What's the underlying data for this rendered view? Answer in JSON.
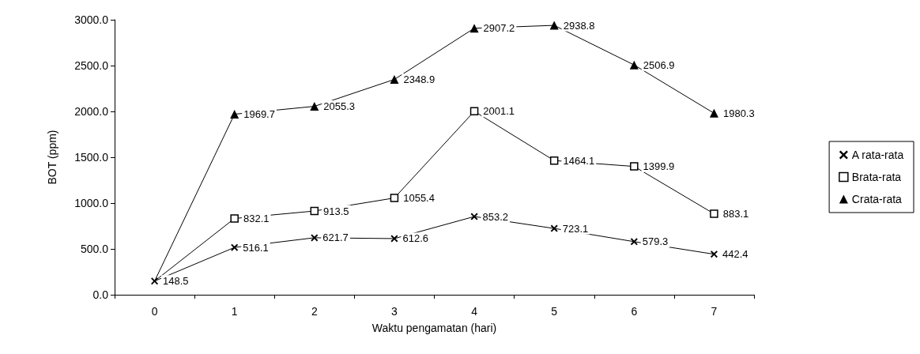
{
  "chart_data": {
    "type": "line",
    "xlabel": "Waktu pengamatan (hari)",
    "ylabel": "BOT (ppm)",
    "categories": [
      "0",
      "1",
      "2",
      "3",
      "4",
      "5",
      "6",
      "7"
    ],
    "ylim": [
      0,
      3000
    ],
    "yticks": [
      {
        "value": 0,
        "label": "0.0"
      },
      {
        "value": 500,
        "label": "500.0"
      },
      {
        "value": 1000,
        "label": "1000.0"
      },
      {
        "value": 1500,
        "label": "1500.0"
      },
      {
        "value": 2000,
        "label": "2000.0"
      },
      {
        "value": 2500,
        "label": "2500.0"
      },
      {
        "value": 3000,
        "label": "3000.0"
      }
    ],
    "grid": false,
    "legend": "right",
    "line_style": "solid",
    "series": [
      {
        "name": "A rata-rata",
        "color": "#000000",
        "marker": "cross",
        "values": [
          148.5,
          516.1,
          621.7,
          612.6,
          853.2,
          723.1,
          579.3,
          442.4
        ],
        "value_labels": [
          "148.5",
          "516.1",
          "621.7",
          "612.6",
          "853.2",
          "723.1",
          "579.3",
          "442.4"
        ]
      },
      {
        "name": "Brata-rata",
        "color": "#000000",
        "marker": "square",
        "values": [
          148.5,
          832.1,
          913.5,
          1055.4,
          2001.1,
          1464.1,
          1399.9,
          883.1
        ],
        "value_labels": [
          null,
          "832.1",
          "913.5",
          "1055.4",
          "2001.1",
          "1464.1",
          "1399.9",
          "883.1"
        ]
      },
      {
        "name": "Crata-rata",
        "color": "#000000",
        "marker": "triangle",
        "values": [
          148.5,
          1969.7,
          2055.3,
          2348.9,
          2907.2,
          2938.8,
          2506.9,
          1980.3
        ],
        "value_labels": [
          null,
          "1969.7",
          "2055.3",
          "2348.9",
          "2907.2",
          "2938.8",
          "2506.9",
          "1980.3"
        ]
      }
    ]
  }
}
